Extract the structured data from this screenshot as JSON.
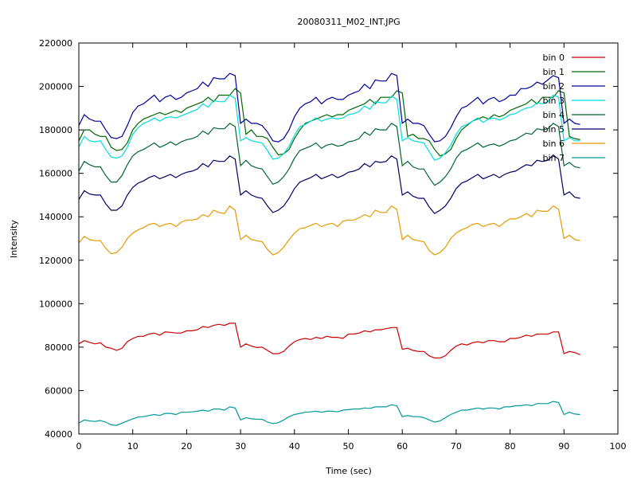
{
  "chart_data": {
    "type": "line",
    "title": "20080311_M02_INT.JPG",
    "xlabel": "Time (sec)",
    "ylabel": "Intensity",
    "xlim": [
      0,
      100
    ],
    "ylim": [
      40000,
      220000
    ],
    "xticks": [
      "0",
      "10",
      "20",
      "30",
      "40",
      "50",
      "60",
      "70",
      "80",
      "90",
      "100"
    ],
    "yticks": [
      "40000",
      "60000",
      "80000",
      "100000",
      "120000",
      "140000",
      "160000",
      "180000",
      "200000",
      "220000"
    ],
    "grid": false,
    "legend": "top-right",
    "x": [
      0,
      1,
      2,
      3,
      4,
      5,
      6,
      7,
      8,
      9,
      10,
      11,
      12,
      13,
      14,
      15,
      16,
      17,
      18,
      19,
      20,
      21,
      22,
      23,
      24,
      25,
      26,
      27,
      28,
      29,
      30,
      31,
      32,
      33,
      34,
      35,
      36,
      37,
      38,
      39,
      40,
      41,
      42,
      43,
      44,
      45,
      46,
      47,
      48,
      49,
      50,
      51,
      52,
      53,
      54,
      55,
      56,
      57,
      58,
      59,
      60,
      61,
      62,
      63,
      64,
      65,
      66,
      67,
      68,
      69,
      70,
      71,
      72,
      73,
      74,
      75,
      76,
      77,
      78,
      79,
      80,
      81,
      82,
      83,
      84,
      85,
      86,
      87,
      88,
      89,
      90,
      91,
      92,
      93
    ],
    "series": [
      {
        "name": "bin 0",
        "color": "#cc0000",
        "values": [
          81500,
          83000,
          82200,
          81500,
          82000,
          80000,
          79500,
          78500,
          79500,
          82500,
          84000,
          85000,
          85000,
          86000,
          86500,
          85500,
          87000,
          86800,
          86500,
          86500,
          87500,
          87500,
          88000,
          89500,
          89000,
          90000,
          90500,
          90000,
          91000,
          91000,
          80000,
          81500,
          80500,
          79800,
          80000,
          78500,
          77000,
          77000,
          78000,
          80500,
          82500,
          83500,
          84000,
          83500,
          84500,
          84000,
          85000,
          84500,
          84500,
          84000,
          86000,
          86000,
          86500,
          87500,
          87000,
          88000,
          88000,
          88500,
          89000,
          89000,
          79000,
          79500,
          78500,
          78000,
          78000,
          76000,
          75000,
          75000,
          76000,
          78500,
          80500,
          81500,
          81000,
          82000,
          82500,
          82000,
          83000,
          83000,
          82500,
          82500,
          84000,
          84000,
          84500,
          85500,
          85000,
          86000,
          86000,
          86000,
          87000,
          87000,
          77000,
          78000,
          77500,
          76500
        ]
      },
      {
        "name": "bin 1",
        "color": "#006600",
        "values": [
          175000,
          180000,
          180000,
          178000,
          177000,
          177000,
          172000,
          170500,
          171000,
          174000,
          180000,
          183000,
          185000,
          186000,
          187000,
          188000,
          187000,
          188000,
          189000,
          188000,
          190000,
          191000,
          192000,
          193000,
          195000,
          193000,
          196000,
          196000,
          196000,
          199000,
          197000,
          178000,
          180000,
          177000,
          177000,
          176000,
          172000,
          168500,
          169000,
          171000,
          176000,
          180000,
          183000,
          184000,
          185000,
          186000,
          187000,
          186000,
          187000,
          187000,
          189000,
          190000,
          191000,
          192000,
          194000,
          192000,
          195000,
          195000,
          195000,
          198000,
          197000,
          177000,
          178000,
          176000,
          176000,
          175000,
          171000,
          168000,
          169000,
          171000,
          176000,
          180000,
          182000,
          184000,
          185000,
          186000,
          185000,
          187000,
          186000,
          187000,
          189000,
          190000,
          191000,
          192000,
          194000,
          192000,
          195000,
          195000,
          195000,
          198000,
          197000,
          177000,
          176000,
          175500
        ]
      },
      {
        "name": "bin 2",
        "color": "#000099",
        "values": [
          182000,
          187000,
          185000,
          184000,
          184000,
          180000,
          176500,
          176000,
          177000,
          182000,
          188000,
          191000,
          192000,
          194000,
          196000,
          193000,
          195000,
          196000,
          194000,
          195000,
          197000,
          198000,
          199000,
          202000,
          200000,
          204000,
          203500,
          203500,
          206000,
          205000,
          183000,
          185000,
          183000,
          183000,
          182000,
          179000,
          175000,
          174500,
          176000,
          180000,
          186000,
          190000,
          192000,
          193000,
          195000,
          192000,
          194000,
          195000,
          194000,
          194000,
          196000,
          197000,
          198000,
          201000,
          199000,
          203000,
          202500,
          202500,
          206000,
          205000,
          183000,
          185000,
          183000,
          183000,
          182000,
          178000,
          174500,
          175000,
          177000,
          181000,
          186000,
          190000,
          191000,
          193000,
          195000,
          192000,
          194000,
          195000,
          193000,
          194000,
          196000,
          196000,
          199000,
          199000,
          200000,
          202000,
          201000,
          203000,
          205000,
          204000,
          183000,
          185000,
          183000,
          182500
        ]
      },
      {
        "name": "bin 3",
        "color": "#00dddd",
        "values": [
          172000,
          177000,
          175000,
          174500,
          175000,
          171000,
          167500,
          167000,
          168000,
          172000,
          178000,
          181000,
          183000,
          184000,
          185500,
          184000,
          185500,
          186000,
          185500,
          186500,
          187500,
          188500,
          189500,
          192000,
          190500,
          193500,
          193000,
          193000,
          196000,
          194500,
          175000,
          176500,
          175000,
          174500,
          174000,
          170500,
          166500,
          167000,
          169000,
          172500,
          177500,
          181500,
          182500,
          184000,
          185500,
          184000,
          185000,
          185500,
          185000,
          185500,
          187000,
          187500,
          188500,
          191000,
          189500,
          193000,
          192500,
          192500,
          195500,
          194000,
          175000,
          176500,
          175000,
          174500,
          174000,
          170000,
          166000,
          167000,
          169500,
          173000,
          178000,
          181500,
          182500,
          184000,
          185500,
          183500,
          185000,
          185500,
          184500,
          185500,
          187000,
          187500,
          189000,
          190000,
          190500,
          192500,
          192000,
          193000,
          196000,
          195000,
          175000,
          176500,
          175000,
          175000
        ]
      },
      {
        "name": "bin 4",
        "color": "#006633",
        "values": [
          161000,
          165500,
          164000,
          163000,
          163000,
          159000,
          156000,
          156000,
          159000,
          164000,
          168000,
          170000,
          171000,
          172500,
          174000,
          172000,
          173000,
          174500,
          173000,
          174500,
          175500,
          176000,
          177000,
          179500,
          178000,
          181000,
          180500,
          180500,
          183000,
          181500,
          163500,
          166000,
          163500,
          162500,
          162000,
          158500,
          155000,
          156000,
          158500,
          162000,
          167000,
          170500,
          171500,
          172500,
          174000,
          171500,
          173000,
          173500,
          172500,
          173000,
          174500,
          175000,
          176000,
          179000,
          177500,
          180500,
          180000,
          180000,
          183000,
          181500,
          163500,
          165500,
          163000,
          162000,
          162000,
          158000,
          154500,
          156000,
          158500,
          162000,
          167000,
          170000,
          171000,
          172500,
          174000,
          172000,
          173000,
          173500,
          172500,
          173500,
          175000,
          175500,
          177000,
          178500,
          178000,
          180500,
          180000,
          180500,
          183000,
          181500,
          163500,
          165000,
          163000,
          162500
        ]
      },
      {
        "name": "bin 5",
        "color": "#000066",
        "values": [
          148000,
          152000,
          150500,
          150000,
          150000,
          146000,
          143000,
          143000,
          145000,
          150000,
          153500,
          155500,
          156500,
          158000,
          159000,
          157500,
          158500,
          159500,
          158000,
          159500,
          160500,
          161000,
          162000,
          164500,
          163000,
          166000,
          165500,
          165500,
          168000,
          166500,
          150000,
          152000,
          150000,
          149000,
          148500,
          145000,
          142000,
          143000,
          145000,
          148500,
          153000,
          156000,
          157000,
          158000,
          159500,
          157500,
          158500,
          159500,
          158000,
          159000,
          160500,
          161000,
          162000,
          164500,
          163000,
          165500,
          165000,
          165500,
          168000,
          166500,
          150000,
          151500,
          149500,
          148500,
          148500,
          144500,
          141500,
          143000,
          145000,
          148500,
          153000,
          155500,
          156500,
          158000,
          159500,
          157500,
          158500,
          159500,
          158000,
          159500,
          160500,
          161000,
          162500,
          164000,
          163500,
          166000,
          165500,
          166000,
          168500,
          166500,
          150000,
          151500,
          149000,
          148500
        ]
      },
      {
        "name": "bin 6",
        "color": "#e69a00",
        "values": [
          128000,
          131000,
          129500,
          129000,
          129000,
          125500,
          123000,
          123500,
          126000,
          130000,
          132500,
          134000,
          135000,
          136500,
          137000,
          135500,
          136500,
          137000,
          135500,
          137500,
          138500,
          138500,
          139000,
          141000,
          140000,
          143000,
          142000,
          141500,
          145000,
          143000,
          129500,
          131500,
          129500,
          129000,
          128500,
          125000,
          122500,
          123500,
          126000,
          129500,
          132500,
          134500,
          135000,
          136000,
          137000,
          135500,
          136500,
          137000,
          135500,
          138000,
          138500,
          138500,
          139500,
          141000,
          140000,
          143000,
          142000,
          142000,
          145000,
          143500,
          129500,
          131500,
          129500,
          129000,
          128500,
          124500,
          122500,
          123500,
          126000,
          130000,
          132500,
          134000,
          135000,
          136500,
          137000,
          135500,
          136500,
          137000,
          135500,
          137500,
          139000,
          139000,
          140000,
          141500,
          140000,
          143000,
          142500,
          142500,
          145000,
          143500,
          130000,
          131500,
          129500,
          129000
        ]
      },
      {
        "name": "bin 7",
        "color": "#009999",
        "values": [
          45000,
          46500,
          46000,
          45800,
          46200,
          45500,
          44200,
          44000,
          45000,
          46000,
          47000,
          47800,
          48000,
          48500,
          49000,
          48500,
          49500,
          49500,
          49000,
          50000,
          50000,
          50200,
          50500,
          51000,
          50500,
          51500,
          51500,
          51000,
          52500,
          52000,
          46500,
          47500,
          47000,
          46800,
          46800,
          45500,
          44800,
          45200,
          46500,
          48000,
          49000,
          49500,
          50000,
          50200,
          50500,
          50000,
          50500,
          50500,
          50200,
          51000,
          51200,
          51500,
          51500,
          52000,
          51800,
          52500,
          52500,
          52500,
          53500,
          53000,
          48000,
          48500,
          48000,
          48000,
          47500,
          46500,
          45500,
          46000,
          47500,
          49000,
          50000,
          51000,
          51000,
          51500,
          52000,
          51500,
          52000,
          52000,
          51500,
          52500,
          52500,
          53000,
          53000,
          53500,
          53000,
          54000,
          54000,
          54000,
          55000,
          54500,
          49000,
          50000,
          49200,
          49000
        ]
      }
    ]
  }
}
